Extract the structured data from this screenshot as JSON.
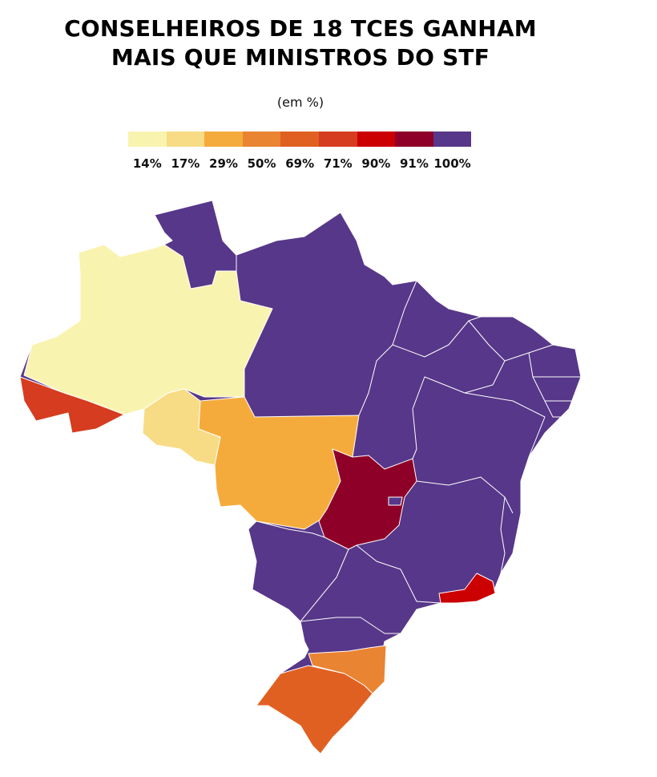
{
  "title_line1": "CONSELHEIROS DE 18 TCES GANHAM",
  "title_line2": "MAIS QUE MINISTROS DO STF",
  "subtitle": "(em %)",
  "legend": [
    {
      "label": "14%",
      "color": "#f9f3b0"
    },
    {
      "label": "17%",
      "color": "#f7dc85"
    },
    {
      "label": "29%",
      "color": "#f5ab3c"
    },
    {
      "label": "50%",
      "color": "#e98432"
    },
    {
      "label": "69%",
      "color": "#e06022"
    },
    {
      "label": "71%",
      "color": "#d63c1f"
    },
    {
      "label": "90%",
      "color": "#cc0000"
    },
    {
      "label": "91%",
      "color": "#8e0028"
    },
    {
      "label": "100%",
      "color": "#573789"
    }
  ]
}
